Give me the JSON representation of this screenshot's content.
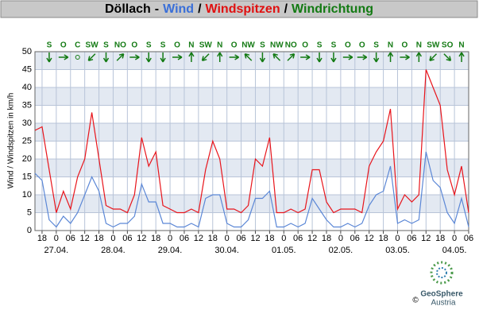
{
  "chart_data": {
    "type": "line",
    "title_parts": [
      {
        "text": "Döllach",
        "color": "#000000"
      },
      {
        "text": "-",
        "color": "#000000"
      },
      {
        "text": "Wind",
        "color": "#3a6fd8"
      },
      {
        "text": "/",
        "color": "#000000"
      },
      {
        "text": "Windspitzen",
        "color": "#e01010"
      },
      {
        "text": "/",
        "color": "#000000"
      },
      {
        "text": "Windrichtung",
        "color": "#137a13"
      }
    ],
    "y_label": "Wind / Windspitzen in km/h",
    "xlim": [
      -9,
      174
    ],
    "ylim": [
      0,
      50
    ],
    "yticks": [
      0,
      5,
      10,
      15,
      20,
      25,
      30,
      35,
      40,
      45,
      50
    ],
    "xticks": [
      {
        "value": -6,
        "label": "18"
      },
      {
        "value": 0,
        "label": "0"
      },
      {
        "value": 6,
        "label": "06"
      },
      {
        "value": 12,
        "label": "12"
      },
      {
        "value": 18,
        "label": "18"
      },
      {
        "value": 24,
        "label": "0"
      },
      {
        "value": 30,
        "label": "06"
      },
      {
        "value": 36,
        "label": "12"
      },
      {
        "value": 42,
        "label": "18"
      },
      {
        "value": 48,
        "label": "0"
      },
      {
        "value": 54,
        "label": "06"
      },
      {
        "value": 60,
        "label": "12"
      },
      {
        "value": 66,
        "label": "18"
      },
      {
        "value": 72,
        "label": "0"
      },
      {
        "value": 78,
        "label": "06"
      },
      {
        "value": 84,
        "label": "12"
      },
      {
        "value": 90,
        "label": "18"
      },
      {
        "value": 96,
        "label": "0"
      },
      {
        "value": 102,
        "label": "06"
      },
      {
        "value": 108,
        "label": "12"
      },
      {
        "value": 114,
        "label": "18"
      },
      {
        "value": 120,
        "label": "0"
      },
      {
        "value": 126,
        "label": "06"
      },
      {
        "value": 132,
        "label": "12"
      },
      {
        "value": 138,
        "label": "18"
      },
      {
        "value": 144,
        "label": "0"
      },
      {
        "value": 150,
        "label": "06"
      },
      {
        "value": 156,
        "label": "12"
      },
      {
        "value": 162,
        "label": "18"
      },
      {
        "value": 168,
        "label": "0"
      },
      {
        "value": 174,
        "label": "06"
      }
    ],
    "date_ticks": [
      {
        "value": 0,
        "label": "27.04."
      },
      {
        "value": 24,
        "label": "28.04."
      },
      {
        "value": 48,
        "label": "29.04."
      },
      {
        "value": 72,
        "label": "30.04."
      },
      {
        "value": 96,
        "label": "01.05."
      },
      {
        "value": 120,
        "label": "02.05."
      },
      {
        "value": 144,
        "label": "03.05."
      },
      {
        "value": 168,
        "label": "04.05."
      }
    ],
    "grid": true,
    "x": [
      -9,
      -6,
      -3,
      0,
      3,
      6,
      9,
      12,
      15,
      18,
      21,
      24,
      27,
      30,
      33,
      36,
      39,
      42,
      45,
      48,
      51,
      54,
      57,
      60,
      63,
      66,
      69,
      72,
      75,
      78,
      81,
      84,
      87,
      90,
      93,
      96,
      99,
      102,
      105,
      108,
      111,
      114,
      117,
      120,
      123,
      126,
      129,
      132,
      135,
      138,
      141,
      144,
      147,
      150,
      153,
      156,
      159,
      162,
      165,
      168,
      171,
      174
    ],
    "series": [
      {
        "color": "#e8141b",
        "values": [
          28,
          29,
          17,
          5,
          11,
          6,
          15,
          20,
          33,
          20,
          7,
          6,
          6,
          5,
          10,
          26,
          18,
          22,
          7,
          6,
          5,
          5,
          6,
          5,
          17,
          25,
          20,
          6,
          6,
          5,
          7,
          20,
          18,
          26,
          5,
          5,
          6,
          5,
          6,
          17,
          17,
          8,
          5,
          6,
          6,
          6,
          5,
          18,
          22,
          25,
          34,
          6,
          10,
          8,
          10,
          45,
          40,
          35,
          17,
          10,
          18,
          5
        ]
      },
      {
        "color": "#5b87d6",
        "values": [
          16,
          14,
          3,
          1,
          4,
          2,
          5,
          10,
          15,
          11,
          2,
          1,
          2,
          2,
          4,
          13,
          8,
          8,
          2,
          2,
          1,
          1,
          2,
          1,
          9,
          10,
          10,
          2,
          1,
          1,
          3,
          9,
          9,
          11,
          1,
          1,
          2,
          1,
          2,
          9,
          6,
          3,
          1,
          1,
          2,
          1,
          2,
          7,
          10,
          11,
          18,
          2,
          3,
          2,
          3,
          22,
          14,
          12,
          5,
          2,
          9,
          1
        ]
      }
    ],
    "wind_direction": {
      "color": "#137a13",
      "x": [
        -3,
        3,
        9,
        15,
        21,
        27,
        33,
        39,
        45,
        51,
        57,
        63,
        69,
        75,
        81,
        87,
        93,
        99,
        105,
        111,
        117,
        123,
        129,
        135,
        141,
        147,
        153,
        159,
        165,
        171
      ],
      "labels": [
        "S",
        "O",
        "C",
        "SW",
        "S",
        "NO",
        "O",
        "S",
        "S",
        "O",
        "N",
        "SW",
        "N",
        "O",
        "NW",
        "S",
        "NW",
        "NO",
        "O",
        "S",
        "S",
        "O",
        "O",
        "S",
        "N",
        "O",
        "N",
        "SW",
        "SO",
        "N"
      ]
    }
  },
  "logo": {
    "name": "GeoSphere",
    "sub": "Austria",
    "copyright": "©"
  }
}
